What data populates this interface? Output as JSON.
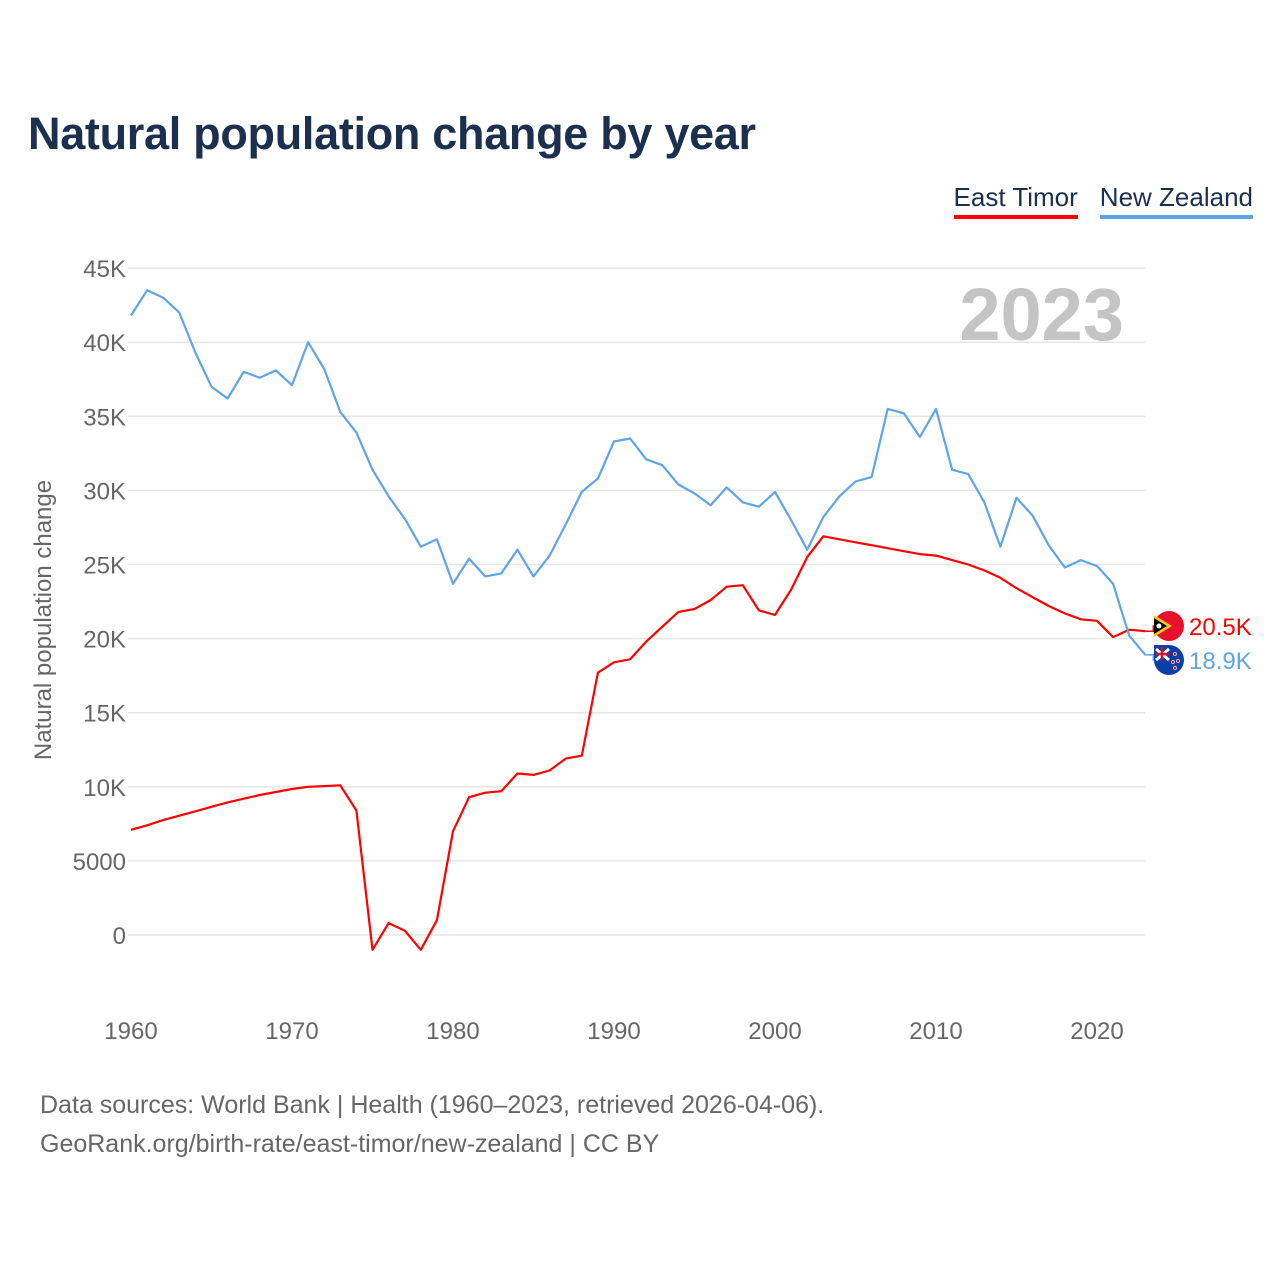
{
  "chart_data": {
    "type": "line",
    "title": "Natural population change by year",
    "ylabel": "Natural population change",
    "xlabel": "",
    "ylim": [
      -4500,
      45000
    ],
    "xlim": [
      1960,
      2023
    ],
    "grid": true,
    "legend_placement": "top-right",
    "year_watermark": "2023",
    "y_ticks": [
      0,
      5000,
      10000,
      15000,
      20000,
      25000,
      30000,
      35000,
      40000,
      45000
    ],
    "y_tick_labels": [
      "0",
      "5000",
      "10K",
      "15K",
      "20K",
      "25K",
      "30K",
      "35K",
      "40K",
      "45K"
    ],
    "x_ticks": [
      1960,
      1970,
      1980,
      1990,
      2000,
      2010,
      2020
    ],
    "x_tick_labels": [
      "1960",
      "1970",
      "1980",
      "1990",
      "2000",
      "2010",
      "2020"
    ],
    "x_start": 1960,
    "series": [
      {
        "name": "East Timor",
        "color": "#ff0000",
        "end_label": "20.5K",
        "values": [
          7100,
          7400,
          7750,
          8050,
          8350,
          8650,
          8950,
          9200,
          9450,
          9650,
          9850,
          10000,
          10050,
          10100,
          8400,
          -1000,
          800,
          300,
          -1000,
          1000,
          7000,
          9300,
          9600,
          9700,
          10900,
          10800,
          11100,
          11900,
          12100,
          17700,
          18400,
          18600,
          19800,
          20800,
          21800,
          22000,
          22600,
          23500,
          23600,
          21900,
          21600,
          23300,
          25500,
          26900,
          26700,
          26500,
          26300,
          26100,
          25900,
          25700,
          25600,
          25300,
          25000,
          24600,
          24100,
          23400,
          22800,
          22200,
          21700,
          21300,
          21200,
          20100,
          20600,
          20500
        ]
      },
      {
        "name": "New Zealand",
        "color": "#5ea4e8",
        "end_label": "18.9K",
        "values": [
          41800,
          43500,
          43000,
          42000,
          39300,
          37000,
          36200,
          38000,
          37600,
          38100,
          37100,
          40000,
          38200,
          35300,
          33900,
          31400,
          29600,
          28100,
          26200,
          26700,
          23700,
          25400,
          24200,
          24400,
          26000,
          24200,
          25600,
          27700,
          29900,
          30800,
          33300,
          33500,
          32100,
          31700,
          30400,
          29800,
          29000,
          30200,
          29200,
          28900,
          29900,
          28000,
          26000,
          28200,
          29600,
          30600,
          30900,
          35500,
          35200,
          33600,
          35500,
          31400,
          31100,
          29200,
          26200,
          29500,
          28300,
          26300,
          24800,
          25300,
          24900,
          23700,
          20200,
          18900
        ]
      }
    ]
  },
  "footer": {
    "line1": "Data sources: World Bank | Health (1960–2023, retrieved 2026-04-06).",
    "line2": "GeoRank.org/birth-rate/east-timor/new-zealand | CC BY"
  }
}
